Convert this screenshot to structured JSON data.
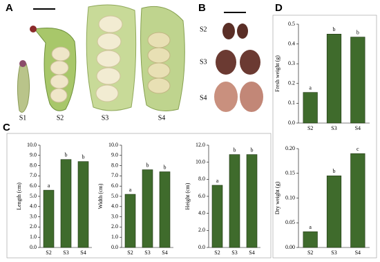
{
  "figure": {
    "panel_labels": [
      "A",
      "B",
      "C",
      "D"
    ],
    "pods": [
      "S1",
      "S2",
      "S3",
      "S4"
    ],
    "seeds": [
      "S2",
      "S3",
      "S4"
    ]
  },
  "chart_data": [
    {
      "type": "bar",
      "ylabel": "Length (cm)",
      "categories": [
        "S2",
        "S3",
        "S4"
      ],
      "values": [
        5.6,
        8.6,
        8.4
      ],
      "annotations": [
        "a",
        "b",
        "b"
      ],
      "color": "#3f6b2c",
      "ylim": [
        0,
        10
      ],
      "yticks": [
        {
          "value": 0,
          "label": "0.0"
        },
        {
          "value": 1,
          "label": "1.0"
        },
        {
          "value": 2,
          "label": "2.0"
        },
        {
          "value": 3,
          "label": "3.0"
        },
        {
          "value": 4,
          "label": "4.0"
        },
        {
          "value": 5,
          "label": "5.0"
        },
        {
          "value": 6,
          "label": "6.0"
        },
        {
          "value": 7,
          "label": "7.0"
        },
        {
          "value": 8,
          "label": "8.0"
        },
        {
          "value": 9,
          "label": "9.0"
        },
        {
          "value": 10,
          "label": "10.0"
        }
      ]
    },
    {
      "type": "bar",
      "ylabel": "Width (cm)",
      "categories": [
        "S2",
        "S3",
        "S4"
      ],
      "values": [
        5.2,
        7.6,
        7.4
      ],
      "annotations": [
        "a",
        "b",
        "b"
      ],
      "color": "#3f6b2c",
      "ylim": [
        0,
        10
      ],
      "yticks": [
        {
          "value": 0,
          "label": "0.0"
        },
        {
          "value": 1,
          "label": "1.0"
        },
        {
          "value": 2,
          "label": "2.0"
        },
        {
          "value": 3,
          "label": "3.0"
        },
        {
          "value": 4,
          "label": "4.0"
        },
        {
          "value": 5,
          "label": "5.0"
        },
        {
          "value": 6,
          "label": "6.0"
        },
        {
          "value": 7,
          "label": "7.0"
        },
        {
          "value": 8,
          "label": "8.0"
        },
        {
          "value": 9,
          "label": "9.0"
        },
        {
          "value": 10,
          "label": "10.0"
        }
      ]
    },
    {
      "type": "bar",
      "ylabel": "Height (cm)",
      "categories": [
        "S2",
        "S3",
        "S4"
      ],
      "values": [
        7.3,
        10.9,
        10.9
      ],
      "annotations": [
        "a",
        "b",
        "b"
      ],
      "color": "#3f6b2c",
      "ylim": [
        0,
        12
      ],
      "yticks": [
        {
          "value": 0,
          "label": "0.0"
        },
        {
          "value": 2,
          "label": "2.0"
        },
        {
          "value": 4,
          "label": "4.0"
        },
        {
          "value": 6,
          "label": "6.0"
        },
        {
          "value": 8,
          "label": "8.0"
        },
        {
          "value": 10,
          "label": "10.0"
        },
        {
          "value": 12,
          "label": "12.0"
        }
      ]
    },
    {
      "type": "bar",
      "ylabel": "Fresh weight (g)",
      "categories": [
        "S2",
        "S3",
        "S4"
      ],
      "values": [
        0.155,
        0.45,
        0.435
      ],
      "annotations": [
        "a",
        "b",
        "b"
      ],
      "color": "#3f6b2c",
      "ylim": [
        0,
        0.5
      ],
      "yticks": [
        {
          "value": 0,
          "label": "0.0"
        },
        0.1,
        0.2,
        0.3,
        0.4,
        0.5
      ]
    },
    {
      "type": "bar",
      "ylabel": "Dry weight (g)",
      "categories": [
        "S2",
        "S3",
        "S4"
      ],
      "values": [
        0.032,
        0.145,
        0.19
      ],
      "annotations": [
        "a",
        "b",
        "c"
      ],
      "color": "#3f6b2c",
      "ylim": [
        0,
        0.2
      ],
      "yticks": [
        {
          "value": 0,
          "label": "0.00"
        },
        0.05,
        {
          "value": 0.1,
          "label": "0.10"
        },
        0.15,
        {
          "value": 0.2,
          "label": "0.20"
        }
      ]
    }
  ]
}
